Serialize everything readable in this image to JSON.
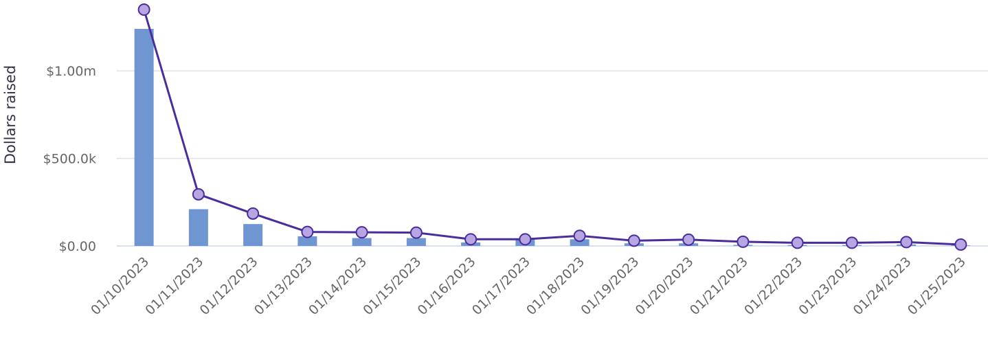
{
  "chart_data": {
    "type": "bar+line",
    "title": "",
    "xlabel": "",
    "ylabel": "Dollars raised",
    "ylim": [
      0,
      1350000
    ],
    "y_ticks": [
      {
        "value": 0,
        "label": "$0.00"
      },
      {
        "value": 500000,
        "label": "$500.0k"
      },
      {
        "value": 1000000,
        "label": "$1.00m"
      }
    ],
    "grid": true,
    "legend": "none",
    "categories": [
      "01/10/2023",
      "01/11/2023",
      "01/12/2023",
      "01/13/2023",
      "01/14/2023",
      "01/15/2023",
      "01/16/2023",
      "01/17/2023",
      "01/18/2023",
      "01/19/2023",
      "01/20/2023",
      "01/21/2023",
      "01/22/2023",
      "01/23/2023",
      "01/24/2023",
      "01/25/2023"
    ],
    "series": [
      {
        "type": "bar",
        "color": "#7096d1",
        "values": [
          1240000,
          210000,
          125000,
          55000,
          45000,
          45000,
          20000,
          35000,
          38000,
          15000,
          15000,
          6000,
          5000,
          5000,
          8000,
          3000
        ]
      },
      {
        "type": "line",
        "color": "#4a2d9c",
        "marker_fill": "#b8a6e3",
        "values": [
          1350000,
          295000,
          185000,
          80000,
          78000,
          76000,
          38000,
          38000,
          58000,
          30000,
          36000,
          24000,
          18000,
          18000,
          22000,
          8000
        ]
      }
    ]
  }
}
